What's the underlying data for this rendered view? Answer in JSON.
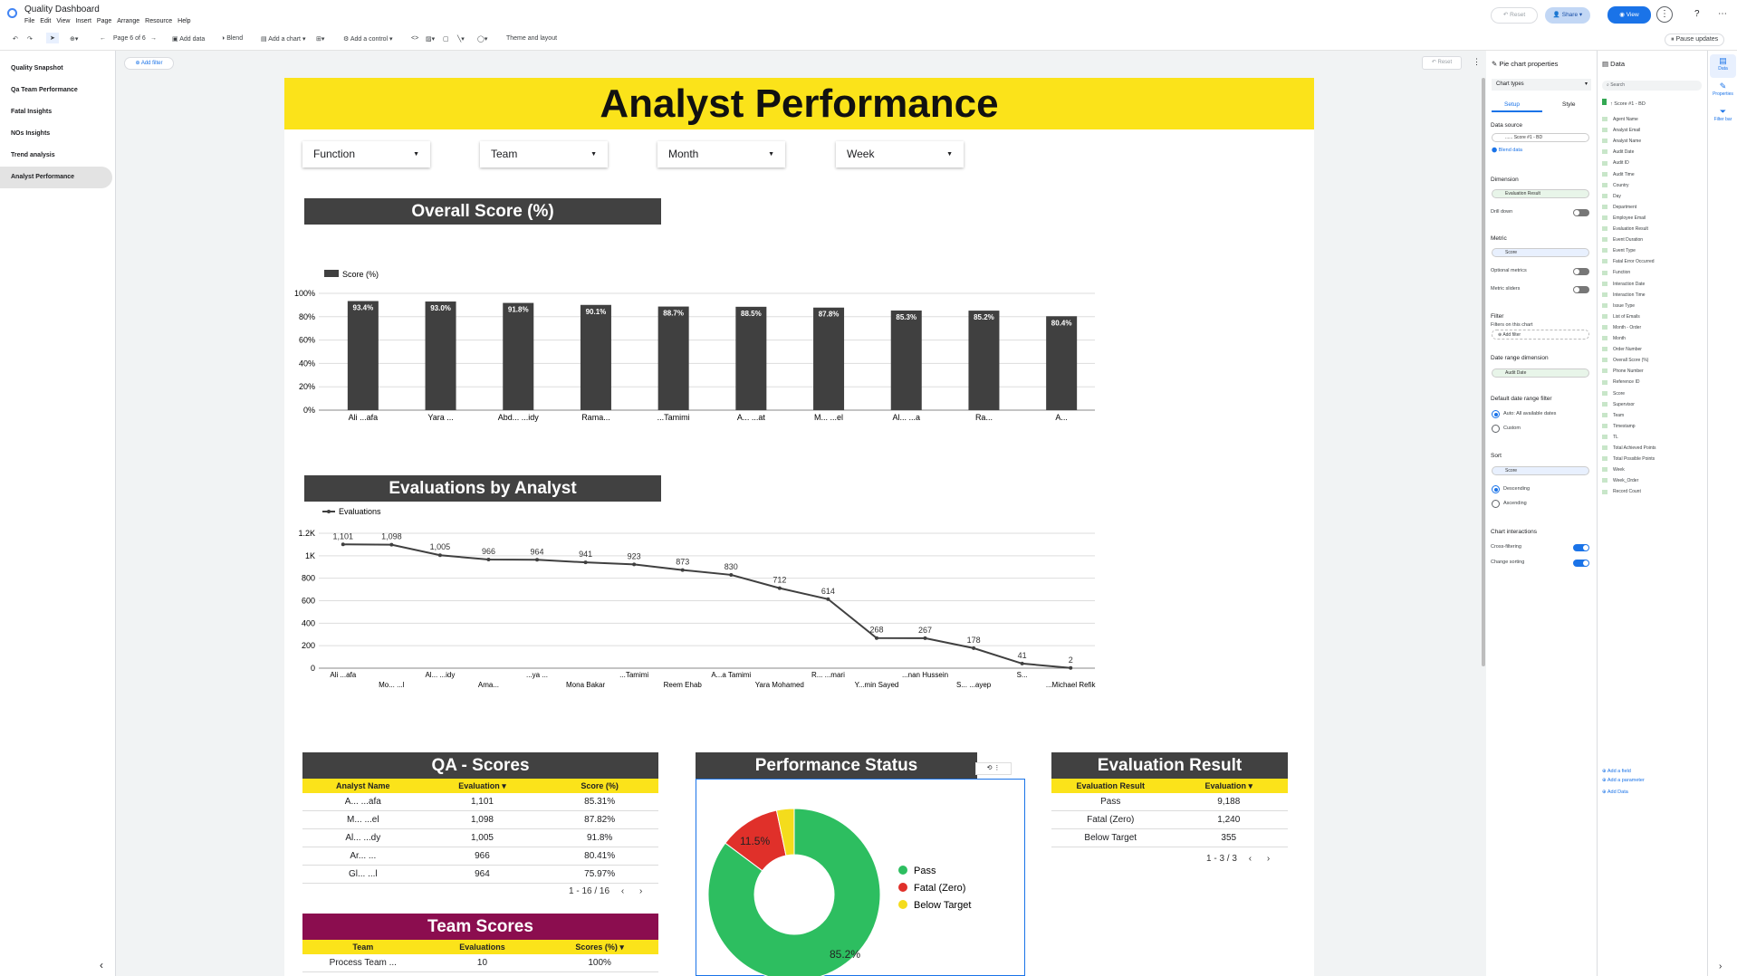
{
  "app": {
    "title": "Quality Dashboard",
    "menu": [
      "File",
      "Edit",
      "View",
      "Insert",
      "Page",
      "Arrange",
      "Resource",
      "Help"
    ],
    "reset_label": "Reset",
    "share_label": "Share",
    "view_label": "View"
  },
  "toolbar": {
    "page_label": "Page 6 of 6",
    "add_data": "Add data",
    "blend": "Blend",
    "add_chart": "Add a chart",
    "add_control": "Add a control",
    "theme": "Theme and layout",
    "pause": "Pause updates",
    "add_filter": "Add filter",
    "reset": "Reset"
  },
  "nav": {
    "items": [
      {
        "label": "Quality Snapshot"
      },
      {
        "label": "Qa Team Performance"
      },
      {
        "label": "Fatal Insights"
      },
      {
        "label": "NOs Insights"
      },
      {
        "label": "Trend analysis"
      },
      {
        "label": "Analyst Performance"
      }
    ]
  },
  "report": {
    "title": "Analyst Performance",
    "filters": [
      "Function",
      "Team",
      "Month",
      "Week"
    ]
  },
  "chart_data": [
    {
      "type": "bar",
      "title": "Overall Score (%)",
      "legend": "Score (%)",
      "legend_position": "top-left",
      "color": "#404040",
      "categories": [
        "Ali ...afa",
        "Yara ...",
        "Abd... ...idy",
        "Rama...",
        "...Tamimi",
        "A... ...at",
        "M... ...el",
        "Al... ...a",
        "Ra...",
        "A..."
      ],
      "values": [
        93.4,
        93.0,
        91.8,
        90.1,
        88.7,
        88.5,
        87.8,
        85.3,
        85.2,
        80.4
      ],
      "data_labels": [
        "93.4%",
        "93.0%",
        "91.8%",
        "90.1%",
        "88.7%",
        "88.5%",
        "87.8%",
        "85.3%",
        "85.2%",
        "80.4%"
      ],
      "yticks": [
        "0%",
        "20%",
        "40%",
        "60%",
        "80%",
        "100%"
      ],
      "ylim": [
        0,
        100
      ]
    },
    {
      "type": "line",
      "title": "Evaluations by Analyst",
      "legend": "Evaluations",
      "legend_position": "top-left",
      "color": "#404040",
      "categories": [
        "Ali ...afa",
        "Mo... ...l",
        "Al... ...idy",
        "Ama...",
        "...ya ...",
        "Mona Bakar",
        "...Tamimi",
        "Reem Ehab",
        "A...a Tamimi",
        "Yara Mohamed",
        "R... ...mari",
        "Y...min Sayed",
        "...nan Hussein",
        "S... ...ayep",
        "S...",
        "...Michael Refik"
      ],
      "values": [
        1101,
        1098,
        1005,
        966,
        964,
        941,
        923,
        873,
        830,
        712,
        614,
        268,
        267,
        178,
        41,
        2
      ],
      "data_labels": [
        "1,101",
        "1,098",
        "1,005",
        "966",
        "964",
        "941",
        "923",
        "873",
        "830",
        "712",
        "614",
        "268",
        "267",
        "178",
        "41",
        "2"
      ],
      "yticks": [
        "0",
        "200",
        "400",
        "600",
        "800",
        "1K",
        "1.2K"
      ],
      "ylim": [
        0,
        1200
      ]
    },
    {
      "type": "pie",
      "title": "Performance Status",
      "legend_position": "right",
      "slices": [
        {
          "label": "Pass",
          "value": 85.2,
          "color": "#2dbe60"
        },
        {
          "label": "Fatal (Zero)",
          "value": 11.5,
          "color": "#e0302a"
        },
        {
          "label": "Below Target",
          "value": 3.3,
          "color": "#f4dc1c"
        }
      ],
      "data_labels": [
        "85.2%",
        "11.5%"
      ]
    }
  ],
  "qa_scores": {
    "title": "QA - Scores",
    "headers": [
      "Analyst Name",
      "Evaluation ▾",
      "Score (%)"
    ],
    "rows": [
      [
        "A... ...afa",
        "1,101",
        "85.31%"
      ],
      [
        "M... ...el",
        "1,098",
        "87.82%"
      ],
      [
        "Al... ...dy",
        "1,005",
        "91.8%"
      ],
      [
        "Ar... ...",
        "966",
        "80.41%"
      ],
      [
        "Gl... ...l",
        "964",
        "75.97%"
      ]
    ],
    "pager": "1 - 16 / 16"
  },
  "team_scores": {
    "title": "Team Scores",
    "headers": [
      "Team",
      "Evaluations",
      "Scores (%) ▾"
    ],
    "rows": [
      [
        "Process Team ...",
        "10",
        "100%"
      ]
    ]
  },
  "eval_result": {
    "title": "Evaluation Result",
    "headers": [
      "Evaluation Result",
      "Evaluation ▾"
    ],
    "rows": [
      [
        "Pass",
        "9,188"
      ],
      [
        "Fatal (Zero)",
        "1,240"
      ],
      [
        "Below Target",
        "355"
      ]
    ],
    "pager": "1 - 3 / 3"
  },
  "properties": {
    "title": "Pie chart properties",
    "chart_types": "Chart types",
    "tab_setup": "Setup",
    "tab_style": "Style",
    "data_source": "Data source",
    "source_value": "...... Score #1 - BD",
    "blend_data": "Blend data",
    "dimension": "Dimension",
    "dimension_value": "Evaluation Result",
    "drill_down": "Drill down",
    "metric": "Metric",
    "metric_value": "Score",
    "optional_metrics": "Optional metrics",
    "metric_sliders": "Metric sliders",
    "filter": "Filter",
    "filters_on_chart": "Filters on this chart",
    "add_filter": "Add filter",
    "date_range_dimension": "Date range dimension",
    "date_range_value": "Audit Date",
    "default_date_range": "Default date range filter",
    "auto": "Auto: All available dates",
    "custom": "Custom",
    "sort": "Sort",
    "sort_value": "Score",
    "descending": "Descending",
    "ascending": "Ascending",
    "chart_interactions": "Chart interactions",
    "cross_filtering": "Cross-filtering",
    "change_sorting": "Change sorting"
  },
  "data_panel": {
    "title": "Data",
    "search": "Search",
    "source": "Score #1 - BD",
    "fields": [
      "Agent Name",
      "Analyst Email",
      "Analyst Name",
      "Audit Date",
      "Audit ID",
      "Audit Time",
      "Country",
      "Day",
      "Department",
      "Employee Email",
      "Evaluation Result",
      "Event Duration",
      "Event Type",
      "Fatal Error Occurred",
      "Function",
      "Interaction Date",
      "Interaction Time",
      "Issue Type",
      "List of Emails",
      "Month - Order",
      "Month",
      "Order Number",
      "Overall Score (%)",
      "Phone Number",
      "Reference ID",
      "Score",
      "Supervisor",
      "Team",
      "Timestamp",
      "TL",
      "Total Achieved Points",
      "Total Possible Points",
      "Week",
      "Week_Order",
      "Record Count"
    ],
    "add_field": "Add a field",
    "add_parameter": "Add a parameter",
    "add_data": "Add Data"
  },
  "iconbar": {
    "data": "Data",
    "properties": "Properties",
    "filter_bar": "Filter bar"
  }
}
